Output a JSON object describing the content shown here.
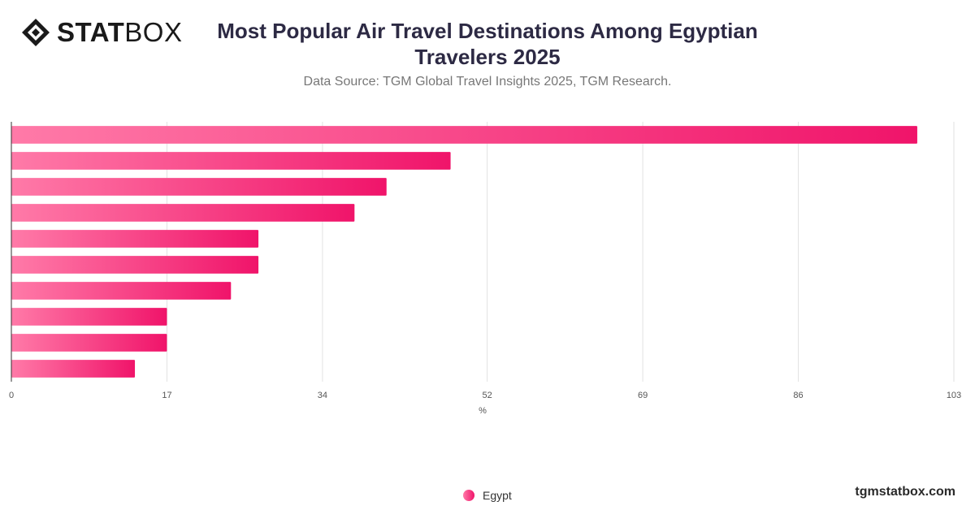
{
  "brand": {
    "logo_bold": "STAT",
    "logo_light": "BOX",
    "footer": "tgmstatbox.com"
  },
  "header": {
    "title": "Most Popular Air Travel Destinations Among Egyptian Travelers 2025",
    "subtitle": "Data Source: TGM Global Travel Insights 2025, TGM Research."
  },
  "colors": {
    "bar_start": "#ff7aa8",
    "bar_end": "#f0146a",
    "grid": "#e2e2e2",
    "axis": "#333333"
  },
  "chart_data": {
    "type": "bar",
    "orientation": "horizontal",
    "categories": [
      "",
      "",
      "",
      "",
      "",
      "",
      "",
      "",
      "",
      ""
    ],
    "series": [
      {
        "name": "Egypt",
        "values": [
          99,
          48,
          41,
          37.5,
          27,
          27,
          24,
          17,
          17,
          13.5
        ]
      }
    ],
    "xlim": [
      0,
      103
    ],
    "xticks": [
      0,
      17,
      34,
      52,
      69,
      86,
      103
    ],
    "xlabel": "%",
    "grid": true,
    "legend": {
      "position": "bottom-center",
      "entries": [
        "Egypt"
      ]
    }
  }
}
